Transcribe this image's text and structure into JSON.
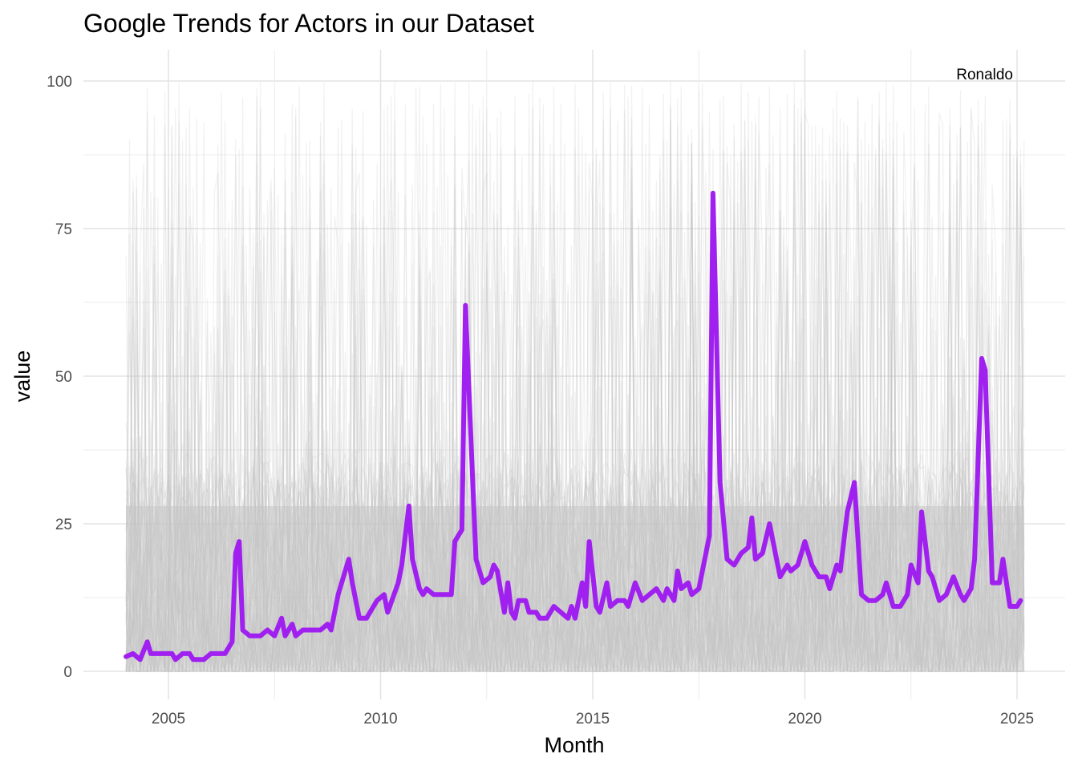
{
  "chart_data": {
    "type": "line",
    "title": "Google Trends for Actors in our Dataset",
    "xlabel": "Month",
    "ylabel": "value",
    "x_range": [
      "2004-01",
      "2025-03"
    ],
    "x_ticks": [
      {
        "label": "2005",
        "value": 2005
      },
      {
        "label": "2010",
        "value": 2010
      },
      {
        "label": "2015",
        "value": 2015
      },
      {
        "label": "2020",
        "value": 2020
      },
      {
        "label": "2025",
        "value": 2025
      }
    ],
    "y_ticks": [
      {
        "label": "0",
        "value": 0
      },
      {
        "label": "25",
        "value": 25
      },
      {
        "label": "50",
        "value": 50
      },
      {
        "label": "75",
        "value": 75
      },
      {
        "label": "100",
        "value": 100
      }
    ],
    "ylim": [
      0,
      100
    ],
    "grid": true,
    "background_series": {
      "description": "many faint grey series, one per actor, values spanning 0-100",
      "color": "#bebebe"
    },
    "highlight_series": {
      "name": "Ronaldo",
      "color": "#a020f0",
      "points": [
        [
          "2004-01",
          2.5
        ],
        [
          "2004-03",
          3
        ],
        [
          "2004-05",
          2
        ],
        [
          "2004-07",
          5
        ],
        [
          "2004-08",
          3
        ],
        [
          "2004-12",
          3
        ],
        [
          "2005-02",
          3
        ],
        [
          "2005-03",
          2
        ],
        [
          "2005-05",
          3
        ],
        [
          "2005-07",
          3
        ],
        [
          "2005-08",
          2
        ],
        [
          "2005-11",
          2
        ],
        [
          "2006-01",
          3
        ],
        [
          "2006-05",
          3
        ],
        [
          "2006-07",
          5
        ],
        [
          "2006-08",
          20
        ],
        [
          "2006-09",
          22
        ],
        [
          "2006-10",
          7
        ],
        [
          "2006-12",
          6
        ],
        [
          "2007-03",
          6
        ],
        [
          "2007-05",
          7
        ],
        [
          "2007-07",
          6
        ],
        [
          "2007-09",
          9
        ],
        [
          "2007-10",
          6
        ],
        [
          "2007-12",
          8
        ],
        [
          "2008-01",
          6
        ],
        [
          "2008-03",
          7
        ],
        [
          "2008-08",
          7
        ],
        [
          "2008-10",
          8
        ],
        [
          "2008-11",
          7
        ],
        [
          "2009-01",
          13
        ],
        [
          "2009-04",
          19
        ],
        [
          "2009-05",
          15
        ],
        [
          "2009-07",
          9
        ],
        [
          "2009-09",
          9
        ],
        [
          "2009-11",
          11
        ],
        [
          "2009-12",
          12
        ],
        [
          "2010-02",
          13
        ],
        [
          "2010-03",
          10
        ],
        [
          "2010-06",
          15
        ],
        [
          "2010-07",
          18
        ],
        [
          "2010-09",
          28
        ],
        [
          "2010-10",
          19
        ],
        [
          "2010-12",
          14
        ],
        [
          "2011-01",
          13
        ],
        [
          "2011-02",
          14
        ],
        [
          "2011-04",
          13
        ],
        [
          "2011-09",
          13
        ],
        [
          "2011-10",
          22
        ],
        [
          "2011-12",
          24
        ],
        [
          "2012-01",
          62
        ],
        [
          "2012-03",
          33
        ],
        [
          "2012-04",
          19
        ],
        [
          "2012-06",
          15
        ],
        [
          "2012-08",
          16
        ],
        [
          "2012-09",
          18
        ],
        [
          "2012-10",
          17
        ],
        [
          "2012-12",
          10
        ],
        [
          "2013-01",
          15
        ],
        [
          "2013-02",
          10
        ],
        [
          "2013-03",
          9
        ],
        [
          "2013-04",
          12
        ],
        [
          "2013-06",
          12
        ],
        [
          "2013-07",
          10
        ],
        [
          "2013-09",
          10
        ],
        [
          "2013-10",
          9
        ],
        [
          "2013-12",
          9
        ],
        [
          "2014-01",
          10
        ],
        [
          "2014-02",
          11
        ],
        [
          "2014-04",
          10
        ],
        [
          "2014-06",
          9
        ],
        [
          "2014-07",
          11
        ],
        [
          "2014-08",
          9
        ],
        [
          "2014-10",
          15
        ],
        [
          "2014-11",
          11
        ],
        [
          "2014-12",
          22
        ],
        [
          "2015-02",
          11
        ],
        [
          "2015-03",
          10
        ],
        [
          "2015-05",
          15
        ],
        [
          "2015-06",
          11
        ],
        [
          "2015-08",
          12
        ],
        [
          "2015-10",
          12
        ],
        [
          "2015-11",
          11
        ],
        [
          "2016-01",
          15
        ],
        [
          "2016-03",
          12
        ],
        [
          "2016-05",
          13
        ],
        [
          "2016-07",
          14
        ],
        [
          "2016-09",
          12
        ],
        [
          "2016-10",
          14
        ],
        [
          "2016-12",
          12
        ],
        [
          "2017-01",
          17
        ],
        [
          "2017-02",
          14
        ],
        [
          "2017-04",
          15
        ],
        [
          "2017-05",
          13
        ],
        [
          "2017-07",
          14
        ],
        [
          "2017-08",
          17
        ],
        [
          "2017-10",
          23
        ],
        [
          "2017-11",
          81
        ],
        [
          "2018-01",
          32
        ],
        [
          "2018-03",
          19
        ],
        [
          "2018-05",
          18
        ],
        [
          "2018-07",
          20
        ],
        [
          "2018-09",
          21
        ],
        [
          "2018-10",
          26
        ],
        [
          "2018-11",
          19
        ],
        [
          "2019-01",
          20
        ],
        [
          "2019-03",
          25
        ],
        [
          "2019-05",
          19
        ],
        [
          "2019-06",
          16
        ],
        [
          "2019-08",
          18
        ],
        [
          "2019-09",
          17
        ],
        [
          "2019-11",
          18
        ],
        [
          "2020-01",
          22
        ],
        [
          "2020-03",
          18
        ],
        [
          "2020-05",
          16
        ],
        [
          "2020-07",
          16
        ],
        [
          "2020-08",
          14
        ],
        [
          "2020-10",
          18
        ],
        [
          "2020-11",
          17
        ],
        [
          "2021-01",
          27
        ],
        [
          "2021-03",
          32
        ],
        [
          "2021-05",
          13
        ],
        [
          "2021-07",
          12
        ],
        [
          "2021-09",
          12
        ],
        [
          "2021-11",
          13
        ],
        [
          "2021-12",
          15
        ],
        [
          "2022-02",
          11
        ],
        [
          "2022-04",
          11
        ],
        [
          "2022-06",
          13
        ],
        [
          "2022-07",
          18
        ],
        [
          "2022-09",
          15
        ],
        [
          "2022-10",
          27
        ],
        [
          "2022-12",
          17
        ],
        [
          "2023-01",
          16
        ],
        [
          "2023-03",
          12
        ],
        [
          "2023-05",
          13
        ],
        [
          "2023-07",
          16
        ],
        [
          "2023-09",
          13
        ],
        [
          "2023-10",
          12
        ],
        [
          "2023-12",
          14
        ],
        [
          "2024-01",
          19
        ],
        [
          "2024-03",
          53
        ],
        [
          "2024-04",
          51
        ],
        [
          "2024-06",
          15
        ],
        [
          "2024-08",
          15
        ],
        [
          "2024-09",
          19
        ],
        [
          "2024-11",
          11
        ],
        [
          "2025-01",
          11
        ],
        [
          "2025-02",
          12
        ]
      ]
    },
    "annotation": {
      "text": "Ronaldo",
      "x": "2022-12",
      "y": 100
    }
  }
}
